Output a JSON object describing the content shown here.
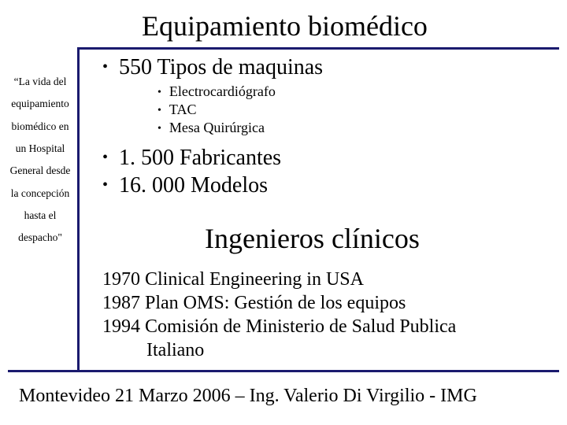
{
  "theme": {
    "accent_color": "#1a1a6e",
    "background_color": "#ffffff",
    "text_color": "#000000",
    "font_family": "Times New Roman",
    "title_fontsize_pt": 36,
    "bullet_main_fontsize_pt": 28,
    "bullet_sub_fontsize_pt": 18,
    "subtitle_fontsize_pt": 36,
    "history_fontsize_pt": 24,
    "footer_fontsize_pt": 24,
    "sidebar_fontsize_pt": 13.5
  },
  "title": "Equipamiento biomédico",
  "sidebar_lines": {
    "l1": "“La vida del",
    "l2": "equipamiento",
    "l3": "biomédico en",
    "l4": "un Hospital",
    "l5": "General desde",
    "l6": "la concepción",
    "l7": "hasta el",
    "l8": "despacho\""
  },
  "bullets": {
    "main1": "550 Tipos de maquinas",
    "sub1": "Electrocardiógrafo",
    "sub2": "TAC",
    "sub3": "Mesa Quirúrgica",
    "main2": "1. 500 Fabricantes",
    "main3": "16. 000 Modelos"
  },
  "subtitle": "Ingenieros clínicos",
  "history": {
    "l1": "1970 Clinical Engineering in USA",
    "l2": "1987 Plan OMS: Gestión de los equipos",
    "l3": "1994 Comisión de Ministerio de Salud Publica",
    "l4": "Italiano"
  },
  "footer": "Montevideo 21 Marzo 2006 – Ing. Valerio Di Virgilio - IMG"
}
